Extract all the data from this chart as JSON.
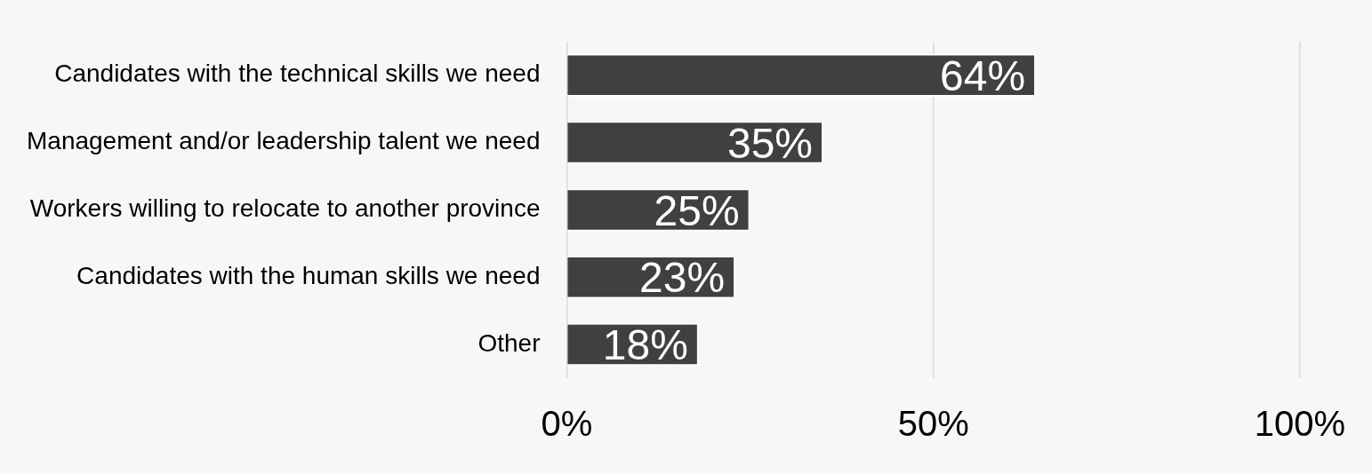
{
  "chart_data": {
    "type": "bar",
    "orientation": "horizontal",
    "categories": [
      "Candidates with the technical skills we need",
      "Management and/or leadership talent we need",
      "Workers willing to relocate to another province",
      "Candidates with the human skills we need",
      "Other"
    ],
    "values": [
      64,
      35,
      25,
      23,
      18
    ],
    "value_labels": [
      "64%",
      "35%",
      "25%",
      "23%",
      "18%"
    ],
    "color": "#404040",
    "xlim": [
      0,
      100
    ],
    "xticks": [
      {
        "value": 0,
        "label": "0%"
      },
      {
        "value": 50,
        "label": "50%"
      },
      {
        "value": 100,
        "label": "100%"
      }
    ],
    "grid": "x",
    "legend": false
  }
}
